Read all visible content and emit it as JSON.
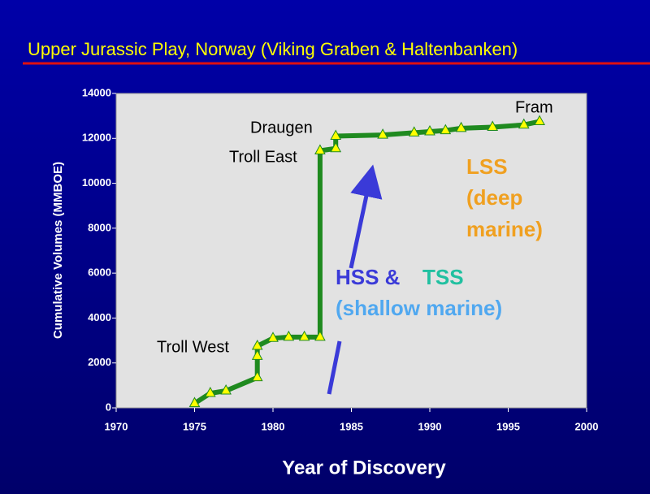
{
  "chart_data": {
    "type": "line",
    "title": "Upper Jurassic Play, Norway (Viking Graben & Haltenbanken)",
    "x_label": "Year of Discovery",
    "y_label": "Cumulative Volumes (MMBOE)",
    "x": [
      1975,
      1976,
      1977,
      1979,
      1979,
      1979,
      1980,
      1981,
      1982,
      1983,
      1983,
      1984,
      1984,
      1987,
      1989,
      1990,
      1991,
      1992,
      1994,
      1996,
      1997
    ],
    "series": [
      {
        "color": "#1f8a1f",
        "values": [
          200,
          650,
          760,
          1350,
          2300,
          2750,
          3100,
          3150,
          3150,
          3150,
          11450,
          11550,
          12100,
          12150,
          12250,
          12300,
          12350,
          12450,
          12500,
          12600,
          12750
        ]
      }
    ],
    "xlim": [
      1970,
      2000
    ],
    "xticks": [
      1970,
      1975,
      1980,
      1985,
      1990,
      1995,
      2000
    ],
    "ylim": [
      0,
      14000
    ],
    "yticks": [
      0,
      2000,
      4000,
      6000,
      8000,
      10000,
      12000,
      14000
    ],
    "annotations": [
      "Draugen",
      "Troll East",
      "Troll West",
      "Fram",
      "LSS",
      "(deep",
      "marine)",
      "HSS &",
      "TSS",
      "(shallow marine)"
    ]
  }
}
